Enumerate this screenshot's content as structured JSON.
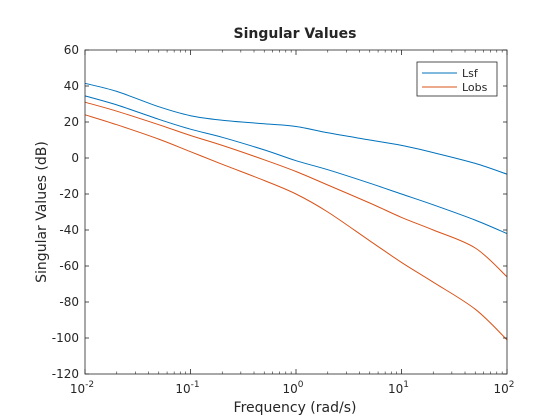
{
  "chart_data": {
    "type": "line",
    "title": "Singular Values",
    "xlabel": "Frequency (rad/s)",
    "ylabel": "Singular Values (dB)",
    "xscale": "log",
    "xlim": [
      0.01,
      100
    ],
    "ylim": [
      -120,
      60
    ],
    "x_tick_labels": [
      {
        "base": "10",
        "exp": "-2"
      },
      {
        "base": "10",
        "exp": "-1"
      },
      {
        "base": "10",
        "exp": "0"
      },
      {
        "base": "10",
        "exp": "1"
      },
      {
        "base": "10",
        "exp": "2"
      }
    ],
    "y_tick_labels": [
      "60",
      "40",
      "20",
      "0",
      "-20",
      "-40",
      "-60",
      "-80",
      "-100",
      "-120"
    ],
    "y_ticks": [
      60,
      40,
      20,
      0,
      -20,
      -40,
      -60,
      -80,
      -100,
      -120
    ],
    "grid": false,
    "legend_position": "top-right",
    "series": [
      {
        "name": "Lsf",
        "color": "#0072BD",
        "x": [
          0.01,
          0.02,
          0.05,
          0.1,
          0.2,
          0.5,
          1,
          2,
          5,
          10,
          20,
          50,
          100
        ],
        "y": [
          41.5,
          37,
          28.5,
          23.5,
          21,
          19,
          17.5,
          14,
          10,
          7,
          3,
          -3,
          -9
        ]
      },
      {
        "name": "Lsf",
        "color": "#0072BD",
        "x": [
          0.01,
          0.02,
          0.05,
          0.1,
          0.2,
          0.5,
          1,
          2,
          5,
          10,
          20,
          50,
          100
        ],
        "y": [
          34.5,
          29.5,
          21.5,
          16,
          11.5,
          4.5,
          -1.5,
          -6.5,
          -14,
          -20,
          -26,
          -34.5,
          -42
        ]
      },
      {
        "name": "Lobs",
        "color": "#D95319",
        "x": [
          0.01,
          0.02,
          0.05,
          0.1,
          0.2,
          0.5,
          1,
          2,
          5,
          10,
          20,
          50,
          100
        ],
        "y": [
          31,
          26,
          18.5,
          12.5,
          7,
          -1,
          -7.5,
          -15,
          -25,
          -33,
          -40,
          -50,
          -66
        ]
      },
      {
        "name": "Lobs",
        "color": "#D95319",
        "x": [
          0.01,
          0.02,
          0.05,
          0.1,
          0.2,
          0.5,
          1,
          2,
          5,
          10,
          20,
          50,
          100
        ],
        "y": [
          24,
          18.5,
          10.5,
          3.5,
          -3.5,
          -12.5,
          -20,
          -30,
          -46,
          -58,
          -69,
          -84,
          -101
        ]
      }
    ],
    "legend": [
      {
        "label": "Lsf",
        "color": "#0072BD"
      },
      {
        "label": "Lobs",
        "color": "#D95319"
      }
    ]
  }
}
